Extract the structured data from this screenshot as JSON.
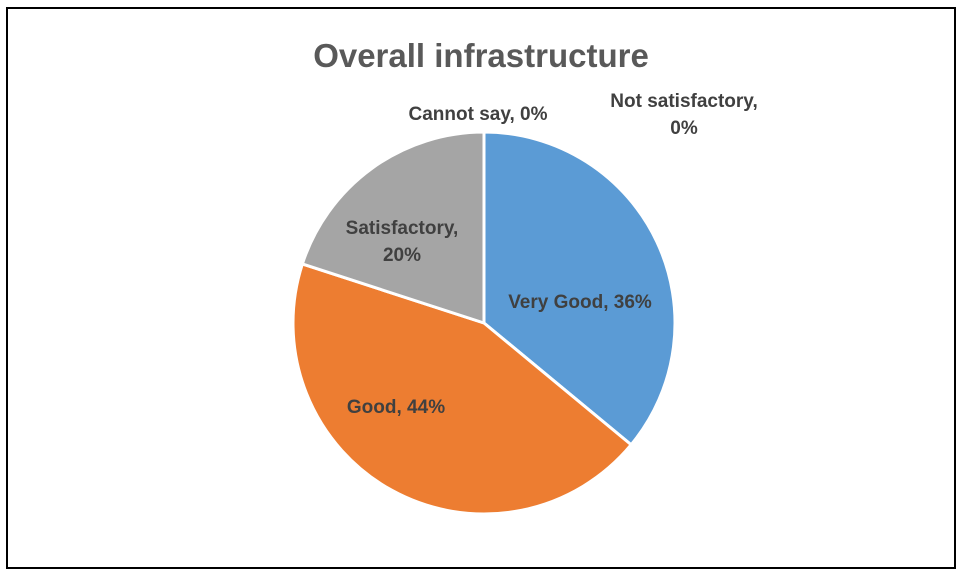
{
  "chart_data": {
    "type": "pie",
    "title": "Overall infrastructure",
    "start": "12 o'clock",
    "direction": "clockwise",
    "slices": [
      {
        "label": "Very Good",
        "value": 36,
        "color": "#5B9BD5",
        "data_label": [
          "Very Good, 36%"
        ]
      },
      {
        "label": "Good",
        "value": 44,
        "color": "#ED7D31",
        "data_label": [
          "Good, 44%"
        ]
      },
      {
        "label": "Satisfactory",
        "value": 20,
        "color": "#A5A5A5",
        "data_label": [
          "Satisfactory,",
          "20%"
        ]
      },
      {
        "label": "Cannot say",
        "value": 0,
        "color": "#FFC000",
        "data_label": [
          "Cannot say, 0%"
        ]
      },
      {
        "label": "Not satisfactory",
        "value": 0,
        "color": "#4472C4",
        "data_label": [
          "Not satisfactory,",
          "0%"
        ]
      }
    ]
  }
}
